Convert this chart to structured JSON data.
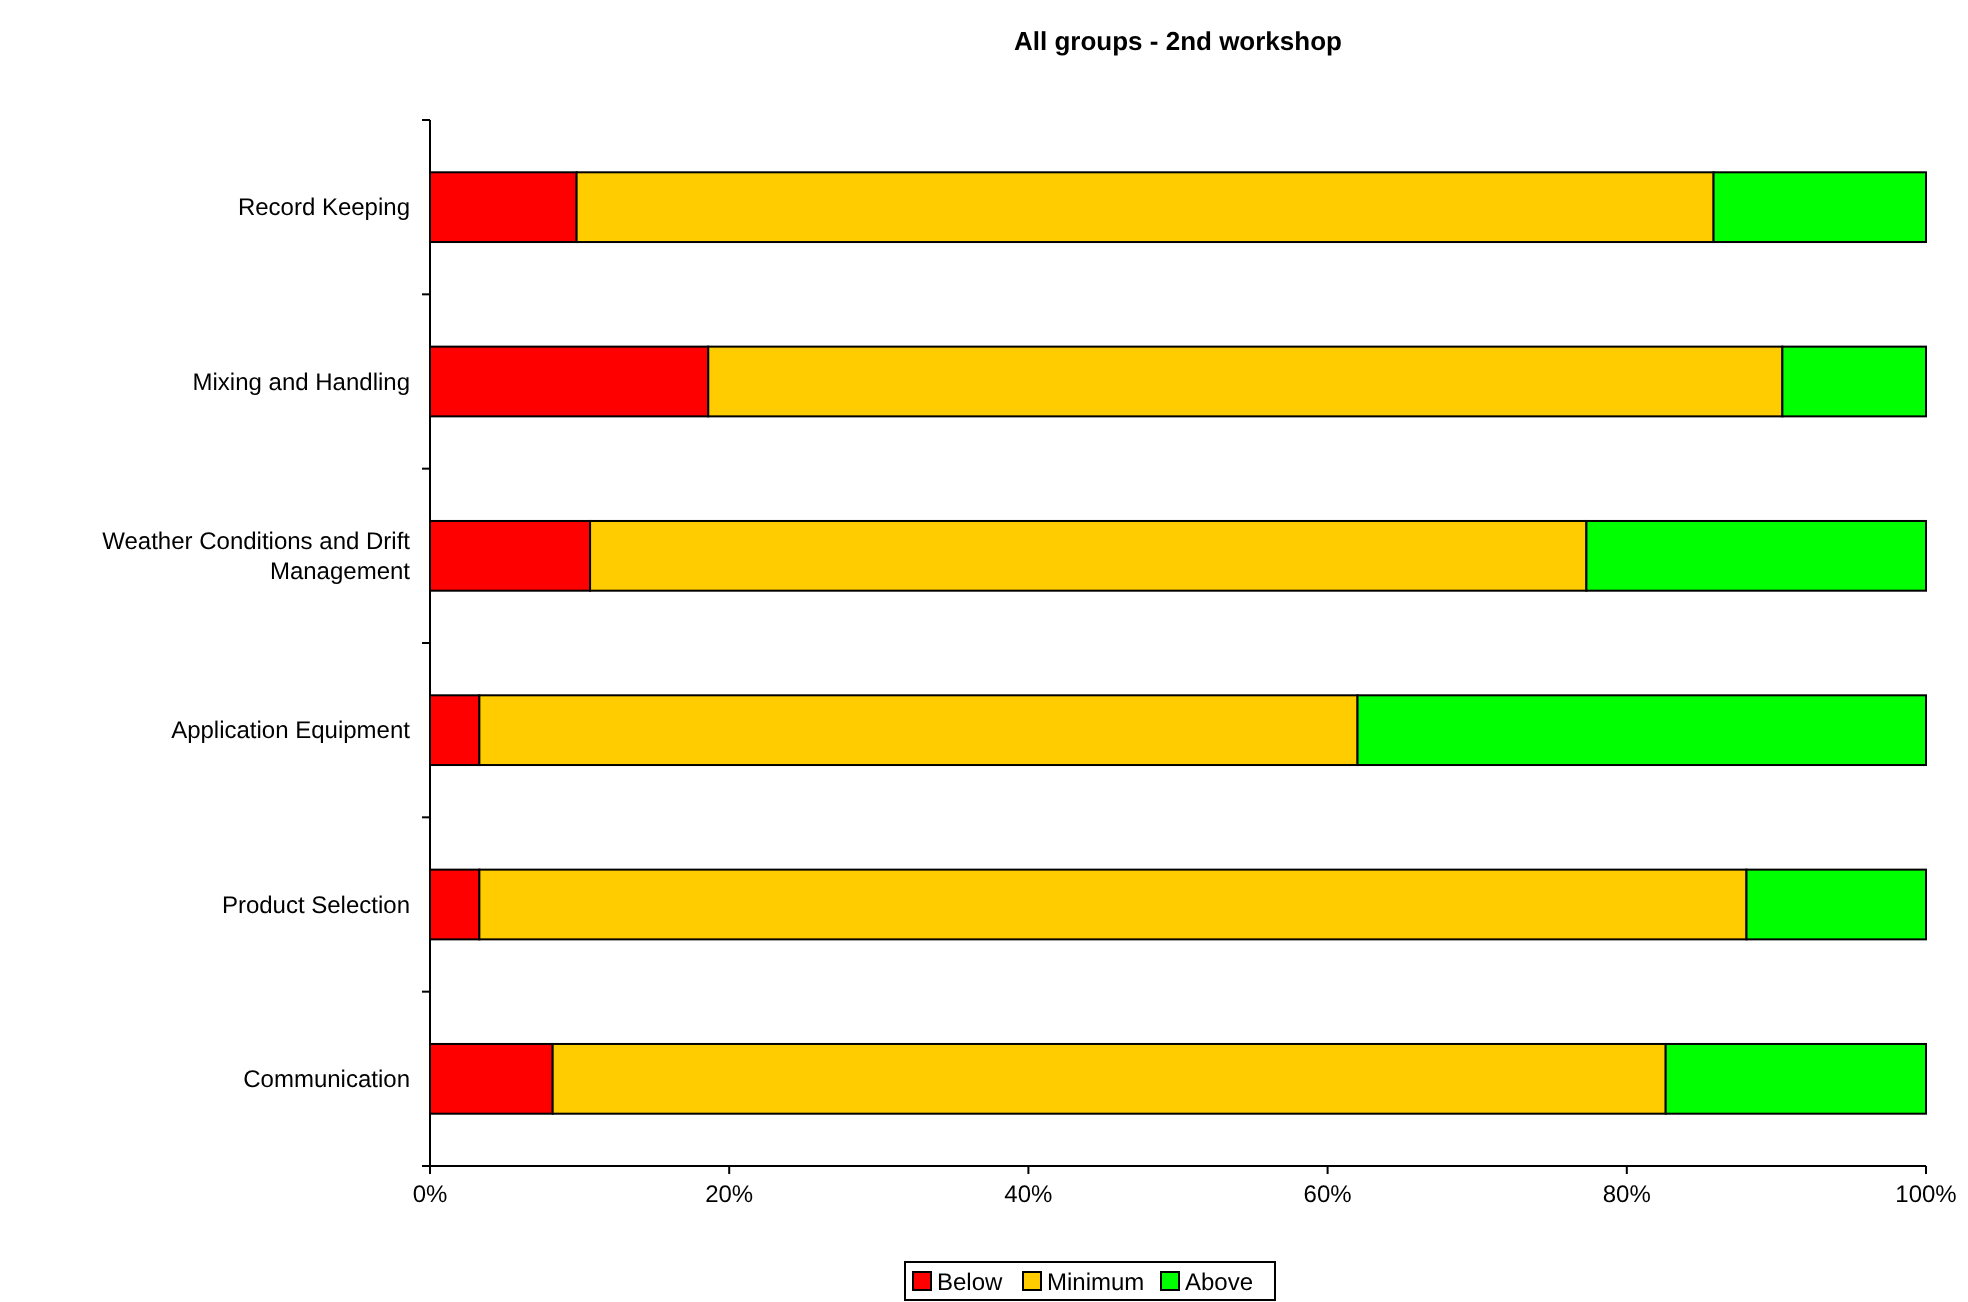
{
  "chart_data": {
    "type": "bar",
    "orientation": "horizontal",
    "stacked": true,
    "title": "All groups - 2nd workshop",
    "categories": [
      "Record Keeping",
      "Mixing and Handling",
      "Weather Conditions and Drift Management",
      "Application Equipment",
      "Product Selection",
      "Communication"
    ],
    "series": [
      {
        "name": "Below",
        "color": "#ff0000",
        "values": [
          9.8,
          18.6,
          10.7,
          3.3,
          3.3,
          8.2
        ]
      },
      {
        "name": "Minimum",
        "color": "#ffcc00",
        "values": [
          76.0,
          71.8,
          66.6,
          58.7,
          84.7,
          74.4
        ]
      },
      {
        "name": "Above",
        "color": "#00ff00",
        "values": [
          14.2,
          9.6,
          22.7,
          38.0,
          12.0,
          17.4
        ]
      }
    ],
    "xlim": [
      0,
      100
    ],
    "xticks": [
      {
        "value": 0,
        "label": "0%"
      },
      {
        "value": 20,
        "label": "20%"
      },
      {
        "value": 40,
        "label": "40%"
      },
      {
        "value": 60,
        "label": "60%"
      },
      {
        "value": 80,
        "label": "80%"
      },
      {
        "value": 100,
        "label": "100%"
      }
    ],
    "grid": false,
    "legend": "bottom"
  }
}
